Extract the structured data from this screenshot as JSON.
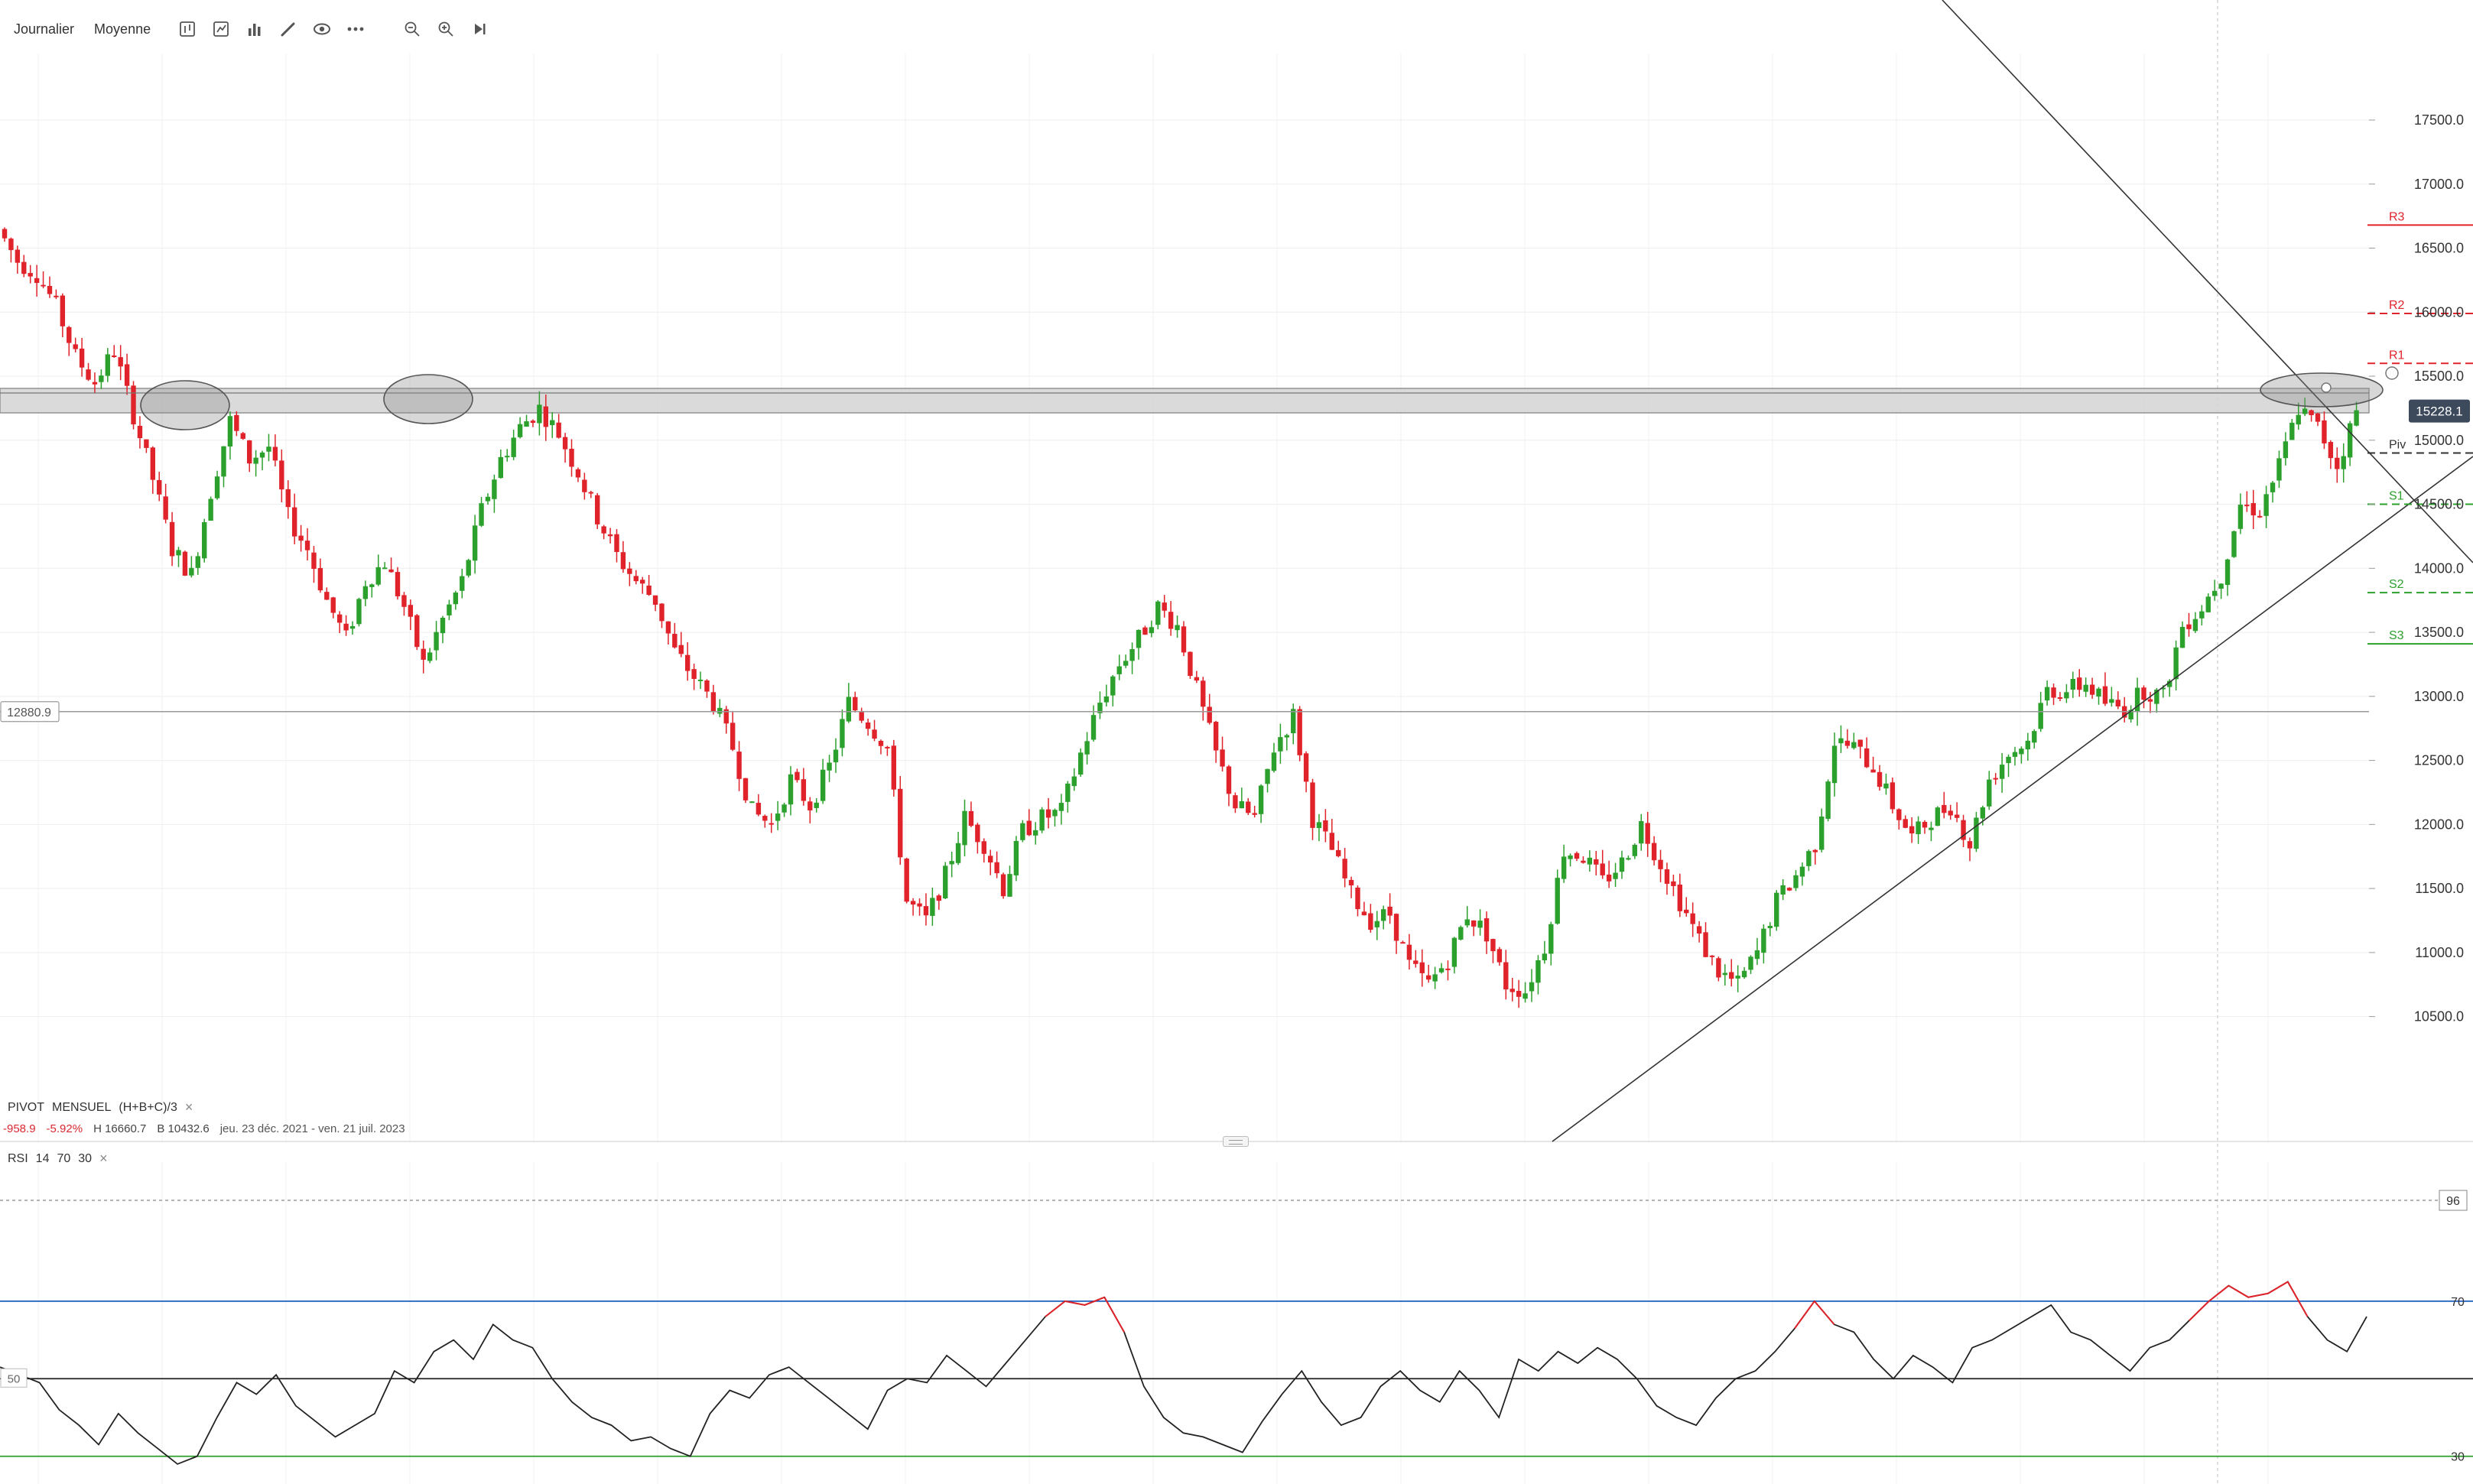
{
  "toolbar": {
    "period_label": "Journalier",
    "mode_label": "Moyenne",
    "icons": [
      "candles-type-icon",
      "indicators-icon",
      "bar-chart-icon",
      "draw-pencil-icon",
      "eye-icon",
      "more-icon",
      "zoom-out-icon",
      "zoom-in-icon",
      "play-forward-icon"
    ]
  },
  "chart_data": {
    "type": "candlestick",
    "y_axis_ticks": [
      "17500.0",
      "17000.0",
      "16500.0",
      "16000.0",
      "15500.0",
      "15000.0",
      "14500.0",
      "14000.0",
      "13500.0",
      "13000.0",
      "12500.0",
      "12000.0",
      "11500.0",
      "11000.0",
      "10500.0"
    ],
    "ylim": [
      10050,
      17900
    ],
    "last_price": "15228.1",
    "horizontal_line_label": "12880.9",
    "horizontal_line_value": 12880.9,
    "date_range_start": "2021-12-23",
    "date_range_end": "2023-07-21",
    "price_path": [
      16650,
      16400,
      16300,
      16050,
      15650,
      15450,
      15700,
      15200,
      14700,
      14150,
      13950,
      14600,
      15150,
      14850,
      14950,
      14400,
      14150,
      13750,
      13450,
      13900,
      14050,
      13700,
      13250,
      13600,
      13900,
      14450,
      14850,
      15100,
      15250,
      15050,
      14750,
      14400,
      14100,
      13900,
      13750,
      13350,
      13150,
      12950,
      12600,
      12100,
      12000,
      12350,
      12150,
      12450,
      12950,
      12800,
      12600,
      11400,
      11250,
      11600,
      12050,
      11850,
      11500,
      11950,
      12050,
      12100,
      12550,
      12950,
      13250,
      13450,
      13700,
      13550,
      13050,
      12550,
      12150,
      12050,
      12600,
      12850,
      12050,
      11800,
      11450,
      11250,
      11300,
      10900,
      10750,
      10950,
      11300,
      11150,
      10750,
      10700,
      11050,
      11800,
      11750,
      11550,
      11700,
      12000,
      11700,
      11400,
      11100,
      10850,
      10750,
      11000,
      11400,
      11600,
      11850,
      12650,
      12600,
      12450,
      12150,
      11900,
      12050,
      12150,
      11850,
      12350,
      12550,
      12650,
      13050,
      13050,
      13100,
      12950,
      12900,
      13050,
      13000,
      13550,
      13700,
      13950,
      14500,
      14450,
      14800,
      15250,
      15100,
      14800,
      15228
    ],
    "rsi": {
      "period": 14,
      "upper": 70,
      "lower": 30,
      "scale_labels": [
        "96",
        "70",
        "50",
        "30"
      ],
      "values": [
        53,
        51,
        49,
        42,
        38,
        33,
        41,
        36,
        32,
        28,
        30,
        40,
        49,
        46,
        51,
        43,
        39,
        35,
        38,
        41,
        52,
        49,
        57,
        60,
        55,
        64,
        60,
        58,
        50,
        44,
        40,
        38,
        34,
        35,
        32,
        30,
        41,
        47,
        45,
        51,
        53,
        49,
        45,
        41,
        37,
        47,
        50,
        49,
        56,
        52,
        48,
        54,
        60,
        66,
        70,
        69,
        71,
        62,
        48,
        40,
        36,
        35,
        33,
        31,
        39,
        46,
        52,
        44,
        38,
        40,
        48,
        52,
        47,
        44,
        52,
        47,
        40,
        55,
        52,
        57,
        54,
        58,
        55,
        50,
        43,
        40,
        38,
        45,
        50,
        52,
        57,
        63,
        70,
        64,
        62,
        55,
        50,
        56,
        53,
        49,
        58,
        60,
        63,
        66,
        69,
        62,
        60,
        56,
        52,
        58,
        60,
        65,
        70,
        74,
        71,
        72,
        75,
        66,
        60,
        57,
        66
      ]
    }
  },
  "pivot_levels": {
    "R3": 16680,
    "R2": 15990,
    "R1": 15600,
    "PIV": 14900,
    "S1": 14500,
    "S2": 13810,
    "S3": 13410,
    "labels": {
      "R3": "R3",
      "R2": "R2",
      "R1": "R1",
      "PIV": "Piv",
      "S1": "S1",
      "S2": "S2",
      "S3": "S3"
    }
  },
  "legend": {
    "pivot_name": "PIVOT",
    "pivot_period": "MENSUEL",
    "pivot_formula": "(H+B+C)/3",
    "change": "-958.9",
    "change_pct": "-5.92%",
    "high": "H 16660.7",
    "low": "B 10432.6",
    "range": "jeu. 23 déc. 2021 - ven. 21 juil. 2023",
    "rsi_name": "RSI",
    "rsi_p1": "14",
    "rsi_p2": "70",
    "rsi_p3": "30",
    "close_symbol": "×"
  },
  "colors": {
    "up": "#2ca02c",
    "down": "#e0232a",
    "rsi_line": "#222222",
    "rsi_overbought": "#e0232a",
    "level_70": "#1f5fbf",
    "level_30": "#2ca02c",
    "price_badge": "#3c4a5c",
    "resistance_band": "#d6d6d6"
  }
}
